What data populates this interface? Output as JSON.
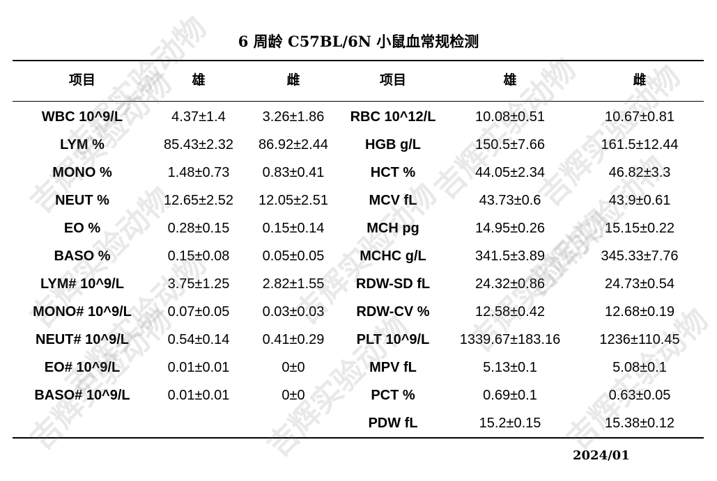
{
  "title": "6 周龄 C57BL/6N 小鼠血常规检测",
  "headers": [
    "项目",
    "雄",
    "雌",
    "项目",
    "雄",
    "雌"
  ],
  "rows": [
    [
      "WBC 10^9/L",
      "4.37±1.4",
      "3.26±1.86",
      "RBC 10^12/L",
      "10.08±0.51",
      "10.67±0.81"
    ],
    [
      "LYM %",
      "85.43±2.32",
      "86.92±2.44",
      "HGB g/L",
      "150.5±7.66",
      "161.5±12.44"
    ],
    [
      "MONO %",
      "1.48±0.73",
      "0.83±0.41",
      "HCT %",
      "44.05±2.34",
      "46.82±3.3"
    ],
    [
      "NEUT %",
      "12.65±2.52",
      "12.05±2.51",
      "MCV fL",
      "43.73±0.6",
      "43.9±0.61"
    ],
    [
      "EO %",
      "0.28±0.15",
      "0.15±0.14",
      "MCH pg",
      "14.95±0.26",
      "15.15±0.22"
    ],
    [
      "BASO %",
      "0.15±0.08",
      "0.05±0.05",
      "MCHC g/L",
      "341.5±3.89",
      "345.33±7.76"
    ],
    [
      "LYM# 10^9/L",
      "3.75±1.25",
      "2.82±1.55",
      "RDW-SD fL",
      "24.32±0.86",
      "24.73±0.54"
    ],
    [
      "MONO# 10^9/L",
      "0.07±0.05",
      "0.03±0.03",
      "RDW-CV %",
      "12.58±0.42",
      "12.68±0.19"
    ],
    [
      "NEUT# 10^9/L",
      "0.54±0.14",
      "0.41±0.29",
      "PLT 10^9/L",
      "1339.67±183.16",
      "1236±110.45"
    ],
    [
      "EO# 10^9/L",
      "0.01±0.01",
      "0±0",
      "MPV fL",
      "5.13±0.1",
      "5.08±0.1"
    ],
    [
      "BASO# 10^9/L",
      "0.01±0.01",
      "0±0",
      "PCT %",
      "0.69±0.1",
      "0.63±0.05"
    ],
    [
      "",
      "",
      "",
      "PDW fL",
      "15.2±0.15",
      "15.38±0.12"
    ]
  ],
  "date": "2024/01",
  "watermark": "吉辉实验动物"
}
